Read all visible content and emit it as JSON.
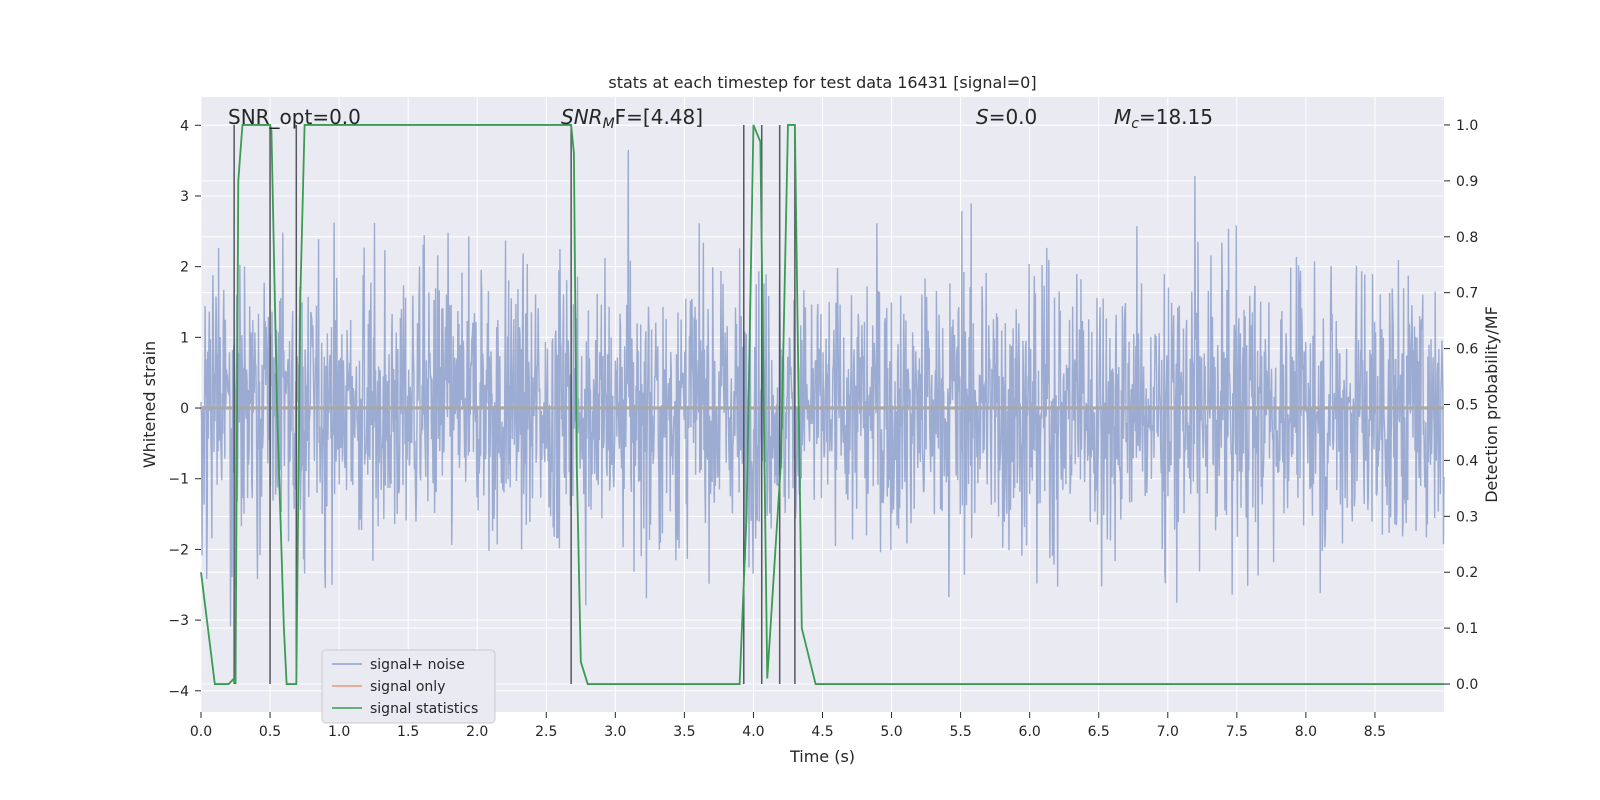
{
  "chart_data": {
    "type": "line",
    "title": "stats at each timestep for test data 16431 [signal=0]",
    "xlabel": "Time (s)",
    "ylabel": "Whitened strain",
    "y2label": "Detection probability/MF",
    "xlim": [
      0.0,
      9.0
    ],
    "ylim": [
      -4.3,
      4.4
    ],
    "y2lim": [
      -0.05,
      1.05
    ],
    "xticks": [
      "0.0",
      "0.5",
      "1.0",
      "1.5",
      "2.0",
      "2.5",
      "3.0",
      "3.5",
      "4.0",
      "4.5",
      "5.0",
      "5.5",
      "6.0",
      "6.5",
      "7.0",
      "7.5",
      "8.0",
      "8.5"
    ],
    "xtick_values": [
      0.0,
      0.5,
      1.0,
      1.5,
      2.0,
      2.5,
      3.0,
      3.5,
      4.0,
      4.5,
      5.0,
      5.5,
      6.0,
      6.5,
      7.0,
      7.5,
      8.0,
      8.5
    ],
    "yticks": [
      "−4",
      "−3",
      "−2",
      "−1",
      "0",
      "1",
      "2",
      "3",
      "4"
    ],
    "ytick_values": [
      -4,
      -3,
      -2,
      -1,
      0,
      1,
      2,
      3,
      4
    ],
    "y2ticks": [
      "0.0",
      "0.1",
      "0.2",
      "0.3",
      "0.4",
      "0.5",
      "0.6",
      "0.7",
      "0.8",
      "0.9",
      "1.0"
    ],
    "y2tick_values": [
      0.0,
      0.1,
      0.2,
      0.3,
      0.4,
      0.5,
      0.6,
      0.7,
      0.8,
      0.9,
      1.0
    ],
    "annotations": {
      "snr_opt": "SNR_opt=0.0",
      "snr_mf_label": "SNR",
      "snr_mf_sub": "M",
      "snr_mf_rest": "F=[4.48]",
      "s_label": "S",
      "s_rest": "=0.0",
      "mc_label": "M",
      "mc_sub": "c",
      "mc_rest": "=18.15"
    },
    "series": [
      {
        "name": "signal+ noise",
        "color": "#8da0cb",
        "description": "whitened noise, roughly uniform amplitude about 2 with peaks up to 3.6 and down to -3.9"
      },
      {
        "name": "signal only",
        "color": "#e8967a",
        "values": "zero everywhere"
      },
      {
        "name": "signal statistics",
        "color": "#3a9b53",
        "axis": "right",
        "x": [
          0.0,
          0.05,
          0.1,
          0.2,
          0.24,
          0.25,
          0.27,
          0.3,
          0.5,
          0.51,
          0.55,
          0.6,
          0.62,
          0.68,
          0.69,
          0.72,
          0.75,
          2.65,
          2.68,
          2.7,
          2.72,
          2.75,
          2.8,
          3.25,
          3.9,
          3.95,
          4.0,
          4.05,
          4.1,
          4.2,
          4.25,
          4.3,
          4.35,
          4.45,
          8.3,
          9.0
        ],
        "values": [
          0.2,
          0.1,
          0.0,
          0.0,
          0.01,
          0.0,
          0.9,
          1.0,
          1.0,
          0.99,
          0.5,
          0.1,
          0.0,
          0.0,
          0.0,
          0.7,
          1.0,
          1.0,
          1.0,
          0.95,
          0.4,
          0.04,
          0.0,
          0.0,
          0.0,
          0.3,
          1.0,
          0.97,
          0.01,
          0.4,
          1.0,
          1.0,
          0.1,
          0.0,
          0.0,
          0.0
        ]
      }
    ],
    "vlines": [
      0.24,
      0.5,
      0.69,
      2.68,
      3.93,
      4.06,
      4.19,
      4.3
    ],
    "legend": {
      "position": "lower-left",
      "entries": [
        {
          "label": "signal+ noise",
          "color": "#8da0cb"
        },
        {
          "label": "signal only",
          "color": "#e8967a"
        },
        {
          "label": "signal statistics",
          "color": "#3a9b53"
        }
      ]
    },
    "colors": {
      "background": "#eaeaf2",
      "grid": "#ffffff",
      "vline": "#55575f",
      "zero_line": "#a8a8a8"
    }
  }
}
